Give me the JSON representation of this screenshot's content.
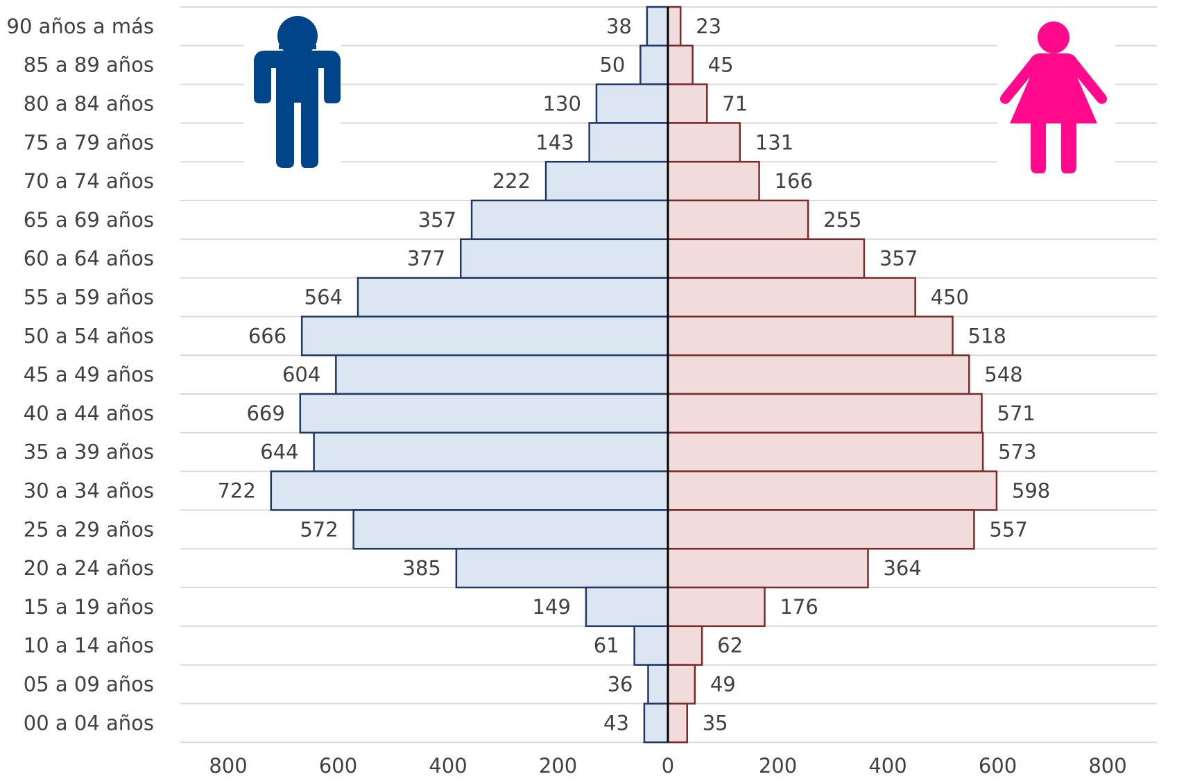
{
  "chart_data": {
    "type": "bar",
    "orientation": "horizontal",
    "layout": "population-pyramid",
    "categories": [
      "90 años a más",
      "85 a 89 años",
      "80 a 84 años",
      "75 a 79 años",
      "70 a 74 años",
      "65 a 69 años",
      "60 a 64 años",
      "55 a 59 años",
      "50 a 54 años",
      "45 a 49 años",
      "40 a 44 años",
      "35 a 39 años",
      "30 a 34 años",
      "25 a 29 años",
      "20 a 24 años",
      "15 a 19 años",
      "10 a 14 años",
      "05 a 09 años",
      "00 a 04 años"
    ],
    "series": [
      {
        "side": "left",
        "icon": "male-figure-icon",
        "values": [
          38,
          50,
          130,
          143,
          222,
          357,
          377,
          564,
          666,
          604,
          669,
          644,
          722,
          572,
          385,
          149,
          61,
          36,
          43
        ]
      },
      {
        "side": "right",
        "icon": "female-figure-icon",
        "values": [
          23,
          45,
          71,
          131,
          166,
          255,
          357,
          450,
          518,
          548,
          571,
          573,
          598,
          557,
          364,
          176,
          62,
          49,
          35
        ]
      }
    ],
    "xlim": [
      -800,
      800
    ],
    "x_ticks": [
      800,
      600,
      400,
      200,
      0,
      200,
      400,
      600,
      800
    ],
    "grid": true,
    "title": "",
    "xlabel": "",
    "ylabel": ""
  },
  "colors": {
    "male_fill": "#dce6f2",
    "male_stroke": "#1f3864",
    "female_fill": "#f2dcdb",
    "female_stroke": "#772c2a",
    "male_icon": "#004589",
    "female_icon": "#ff0a8c",
    "grid": "#d9d9d9",
    "axis": "#000000",
    "text": "#404040"
  }
}
